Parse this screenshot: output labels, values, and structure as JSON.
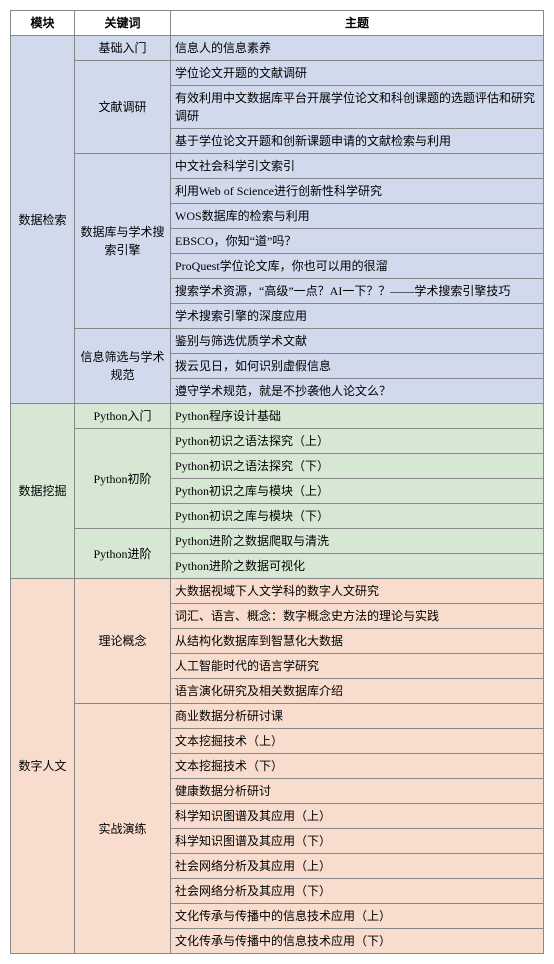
{
  "headers": [
    "模块",
    "关键词",
    "主题"
  ],
  "module_colors": {
    "m1": "#d1d9ed",
    "m2": "#d6e8d4",
    "m3": "#f8ddce"
  },
  "modules": [
    {
      "name": "数据检索",
      "sections": [
        {
          "keyword": "基础入门",
          "topics": [
            "信息人的信息素养"
          ]
        },
        {
          "keyword": "文献调研",
          "topics": [
            "学位论文开题的文献调研",
            "有效利用中文数据库平台开展学位论文和科创课题的选题评估和研究调研",
            "基于学位论文开题和创新课题申请的文献检索与利用"
          ]
        },
        {
          "keyword": "数据库与学术搜索引擎",
          "topics": [
            "中文社会科学引文索引",
            "利用Web of Science进行创新性科学研究",
            "WOS数据库的检索与利用",
            "EBSCO，你知“道”吗？",
            "ProQuest学位论文库，你也可以用的很溜",
            "搜索学术资源，“高级”一点？AI一下？？——学术搜索引擎技巧",
            "学术搜索引擎的深度应用"
          ]
        },
        {
          "keyword": "信息筛选与学术规范",
          "topics": [
            "鉴别与筛选优质学术文献",
            "拨云见日，如何识别虚假信息",
            "遵守学术规范，就是不抄袭他人论文么？"
          ]
        }
      ]
    },
    {
      "name": "数据挖掘",
      "sections": [
        {
          "keyword": "Python入门",
          "topics": [
            "Python程序设计基础"
          ]
        },
        {
          "keyword": "Python初阶",
          "topics": [
            "Python初识之语法探究（上）",
            "Python初识之语法探究（下）",
            "Python初识之库与模块（上）",
            "Python初识之库与模块（下）"
          ]
        },
        {
          "keyword": "Python进阶",
          "topics": [
            "Python进阶之数据爬取与清洗",
            "Python进阶之数据可视化"
          ]
        }
      ]
    },
    {
      "name": "数字人文",
      "sections": [
        {
          "keyword": "理论概念",
          "topics": [
            "大数据视域下人文学科的数字人文研究",
            "词汇、语言、概念：数字概念史方法的理论与实践",
            "从结构化数据库到智慧化大数据",
            "人工智能时代的语言学研究",
            "语言演化研究及相关数据库介绍"
          ]
        },
        {
          "keyword": "实战演练",
          "topics": [
            "商业数据分析研讨课",
            "文本挖掘技术（上）",
            "文本挖掘技术（下）",
            "健康数据分析研讨",
            "科学知识图谱及其应用（上）",
            "科学知识图谱及其应用（下）",
            "社会网络分析及其应用（上）",
            "社会网络分析及其应用（下）",
            "文化传承与传播中的信息技术应用（上）",
            "文化传承与传播中的信息技术应用（下）"
          ]
        }
      ]
    }
  ]
}
